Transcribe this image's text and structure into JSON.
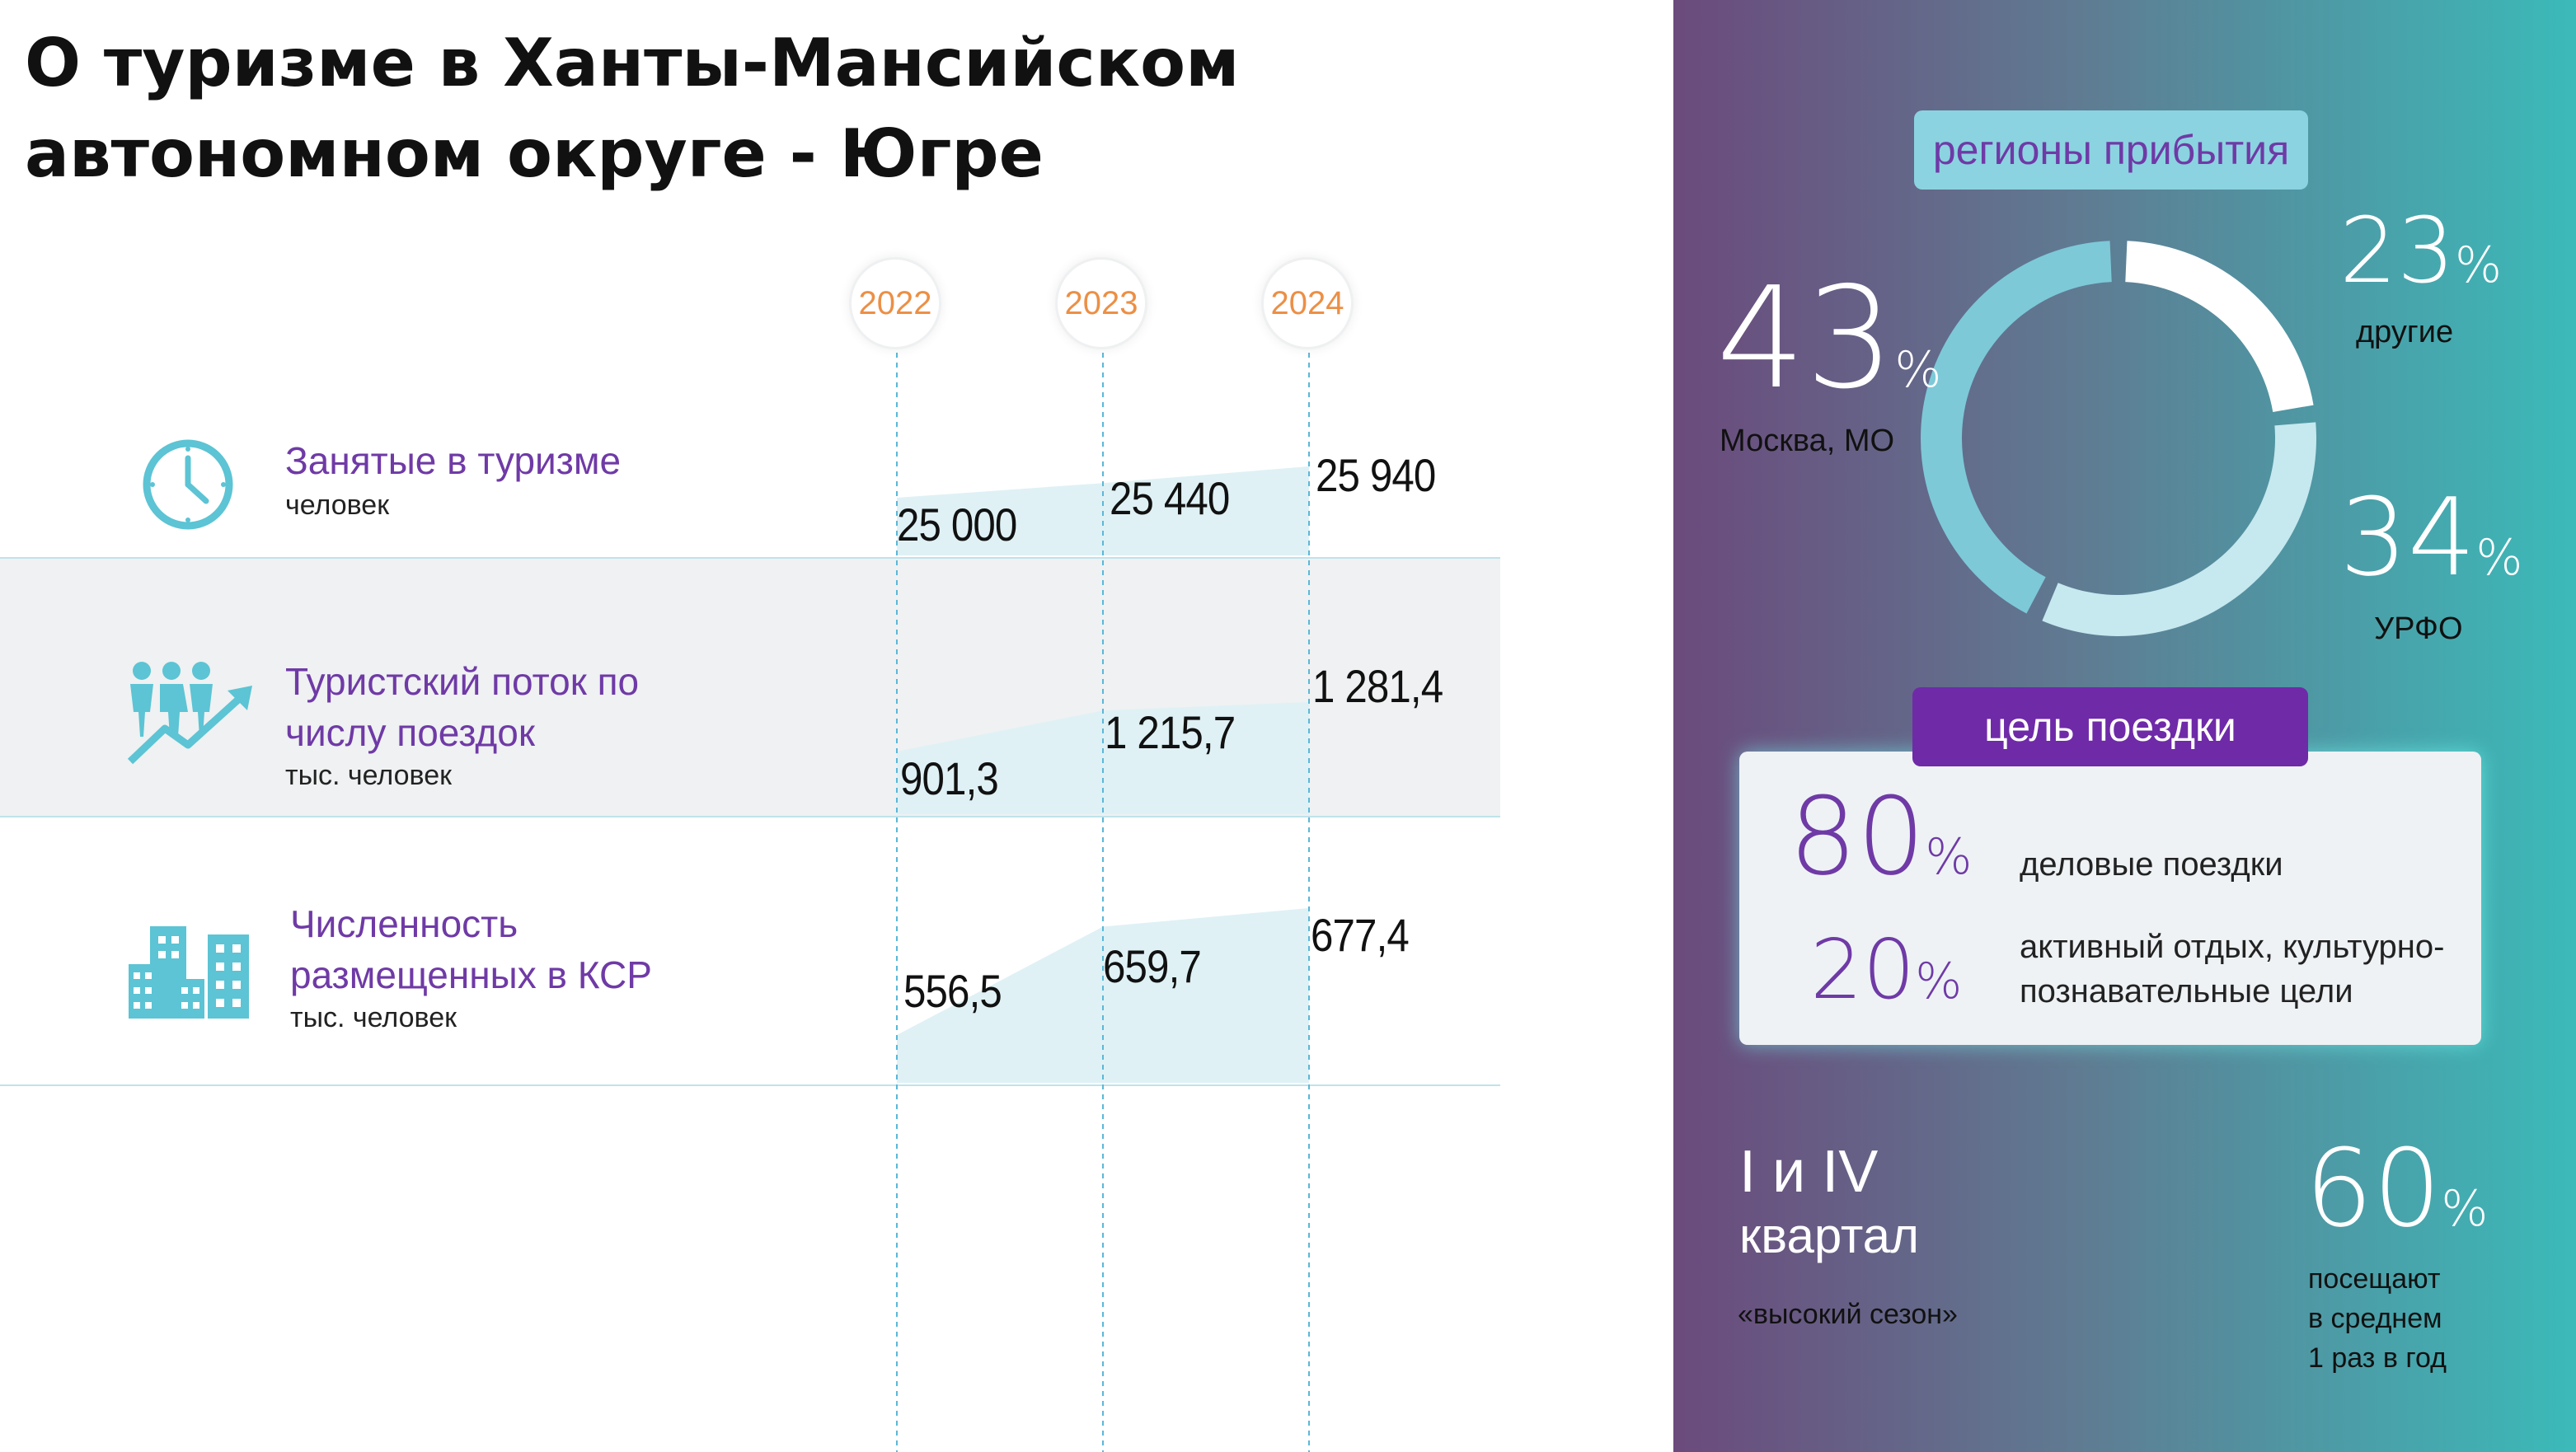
{
  "title": "О туризме в Ханты-Мансийском автономном округе - Югре",
  "years": [
    "2022",
    "2023",
    "2024"
  ],
  "rows": [
    {
      "title": "Занятые в туризме",
      "unit": "человек",
      "icon": "clock-icon",
      "values": [
        "25 000",
        "25 440",
        "25 940"
      ]
    },
    {
      "title": "Туристский поток по числу поездок",
      "unit": "тыс. человек",
      "icon": "people-growth-icon",
      "values": [
        "901,3",
        "1 215,7",
        "1 281,4"
      ]
    },
    {
      "title": "Численность размещенных в КСР",
      "unit": "тыс. человек",
      "icon": "buildings-icon",
      "values": [
        "556,5",
        "659,7",
        "677,4"
      ]
    }
  ],
  "chart_data": [
    {
      "type": "area",
      "title": "Занятые в туризме",
      "ylabel": "человек",
      "x": [
        "2022",
        "2023",
        "2024"
      ],
      "values": [
        25000,
        25440,
        25940
      ]
    },
    {
      "type": "area",
      "title": "Туристский поток по числу поездок",
      "ylabel": "тыс. человек",
      "x": [
        "2022",
        "2023",
        "2024"
      ],
      "values": [
        901.3,
        1215.7,
        1281.4
      ]
    },
    {
      "type": "area",
      "title": "Численность размещенных в КСР",
      "ylabel": "тыс. человек",
      "x": [
        "2022",
        "2023",
        "2024"
      ],
      "values": [
        556.5,
        659.7,
        677.4
      ]
    },
    {
      "type": "pie",
      "title": "регионы прибытия",
      "categories": [
        "Москва, МО",
        "другие",
        "УРФО"
      ],
      "values": [
        43,
        23,
        34
      ]
    }
  ],
  "regions": {
    "heading": "регионы прибытия",
    "items": [
      {
        "value": "43",
        "unit": "%",
        "label": "Москва, МО"
      },
      {
        "value": "23",
        "unit": "%",
        "label": "другие"
      },
      {
        "value": "34",
        "unit": "%",
        "label": "УРФО"
      }
    ]
  },
  "goal": {
    "heading": "цель поездки",
    "items": [
      {
        "value": "80",
        "unit": "%",
        "label": "деловые поездки"
      },
      {
        "value": "20",
        "unit": "%",
        "label": "активный отдых, культурно-познавательные цели"
      }
    ]
  },
  "season": {
    "line1": "I и IV",
    "line2": "квартал",
    "caption": "«высокий сезон»"
  },
  "visit": {
    "value": "60",
    "unit": "%",
    "caption_lines": [
      "посещают",
      "в среднем",
      "1 раз в год"
    ]
  },
  "colors": {
    "accent": "#6f3aa6",
    "year": "#ec8f45",
    "area": "#dff1f5",
    "donut_dark": "#7dc9d8",
    "donut_light": "#c6e8ef"
  }
}
